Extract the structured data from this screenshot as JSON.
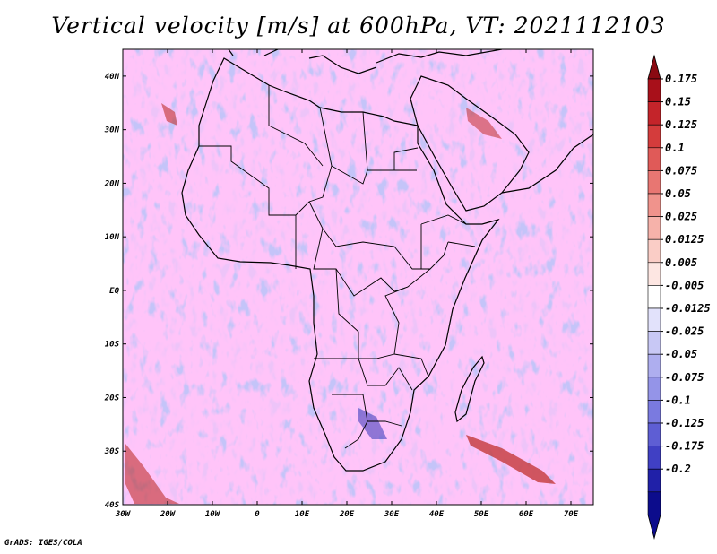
{
  "title": "Vertical velocity [m/s] at 600hPa, VT: 2021112103",
  "credit": "GrADS: IGES/COLA",
  "map": {
    "lon_range": [
      -30,
      75
    ],
    "lat_range": [
      -40,
      45
    ],
    "lat_ticks": [
      {
        "value": 40,
        "label": "40N"
      },
      {
        "value": 30,
        "label": "30N"
      },
      {
        "value": 20,
        "label": "20N"
      },
      {
        "value": 10,
        "label": "10N"
      },
      {
        "value": 0,
        "label": "EQ"
      },
      {
        "value": -10,
        "label": "10S"
      },
      {
        "value": -20,
        "label": "20S"
      },
      {
        "value": -30,
        "label": "30S"
      },
      {
        "value": -40,
        "label": "40S"
      }
    ],
    "lon_ticks": [
      {
        "value": -30,
        "label": "30W"
      },
      {
        "value": -20,
        "label": "20W"
      },
      {
        "value": -10,
        "label": "10W"
      },
      {
        "value": 0,
        "label": "0"
      },
      {
        "value": 10,
        "label": "10E"
      },
      {
        "value": 20,
        "label": "20E"
      },
      {
        "value": 30,
        "label": "30E"
      },
      {
        "value": 40,
        "label": "40E"
      },
      {
        "value": 50,
        "label": "50E"
      },
      {
        "value": 60,
        "label": "60E"
      },
      {
        "value": 70,
        "label": "70E"
      }
    ]
  },
  "colorbar": {
    "bins": [
      {
        "label": "0.175",
        "color": "#a8101a"
      },
      {
        "label": "0.15",
        "color": "#c4242a"
      },
      {
        "label": "0.125",
        "color": "#d43c3c"
      },
      {
        "label": "0.1",
        "color": "#e05a58"
      },
      {
        "label": "0.075",
        "color": "#e87672"
      },
      {
        "label": "0.05",
        "color": "#f0938c"
      },
      {
        "label": "0.025",
        "color": "#f6b2aa"
      },
      {
        "label": "0.0125",
        "color": "#facdc6"
      },
      {
        "label": "0.005",
        "color": "#fde6e2"
      },
      {
        "label": "-0.005",
        "color": "#ffffff"
      },
      {
        "label": "-0.0125",
        "color": "#e2e2fb"
      },
      {
        "label": "-0.025",
        "color": "#c8c8f5"
      },
      {
        "label": "-0.05",
        "color": "#aeaeef"
      },
      {
        "label": "-0.075",
        "color": "#9494e8"
      },
      {
        "label": "-0.1",
        "color": "#7a7ae0"
      },
      {
        "label": "-0.125",
        "color": "#5e5ed4"
      },
      {
        "label": "-0.175",
        "color": "#4040c4"
      },
      {
        "label": "-0.2",
        "color": "#2020a8"
      },
      {
        "label": "",
        "color": "#0c0c8c"
      }
    ],
    "top_cap_color": "#8a0a12",
    "bottom_cap_color": "#0c0c8c"
  }
}
